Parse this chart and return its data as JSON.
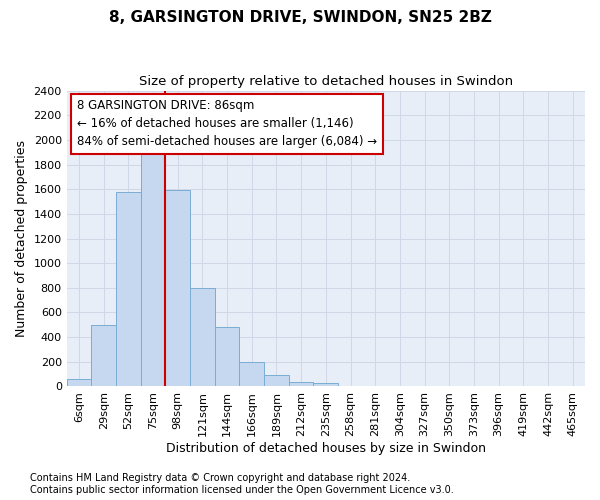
{
  "title": "8, GARSINGTON DRIVE, SWINDON, SN25 2BZ",
  "subtitle": "Size of property relative to detached houses in Swindon",
  "xlabel": "Distribution of detached houses by size in Swindon",
  "ylabel": "Number of detached properties",
  "categories": [
    "6sqm",
    "29sqm",
    "52sqm",
    "75sqm",
    "98sqm",
    "121sqm",
    "144sqm",
    "166sqm",
    "189sqm",
    "212sqm",
    "235sqm",
    "258sqm",
    "281sqm",
    "304sqm",
    "327sqm",
    "350sqm",
    "373sqm",
    "396sqm",
    "419sqm",
    "442sqm",
    "465sqm"
  ],
  "values": [
    60,
    500,
    1580,
    1950,
    1590,
    800,
    480,
    195,
    90,
    35,
    28,
    0,
    0,
    0,
    0,
    0,
    0,
    0,
    0,
    0,
    0
  ],
  "bar_color": "#c5d8f0",
  "bar_edge_color": "#7aadd4",
  "annotation_text": "8 GARSINGTON DRIVE: 86sqm\n← 16% of detached houses are smaller (1,146)\n84% of semi-detached houses are larger (6,084) →",
  "annotation_box_color": "#ffffff",
  "annotation_box_edge": "#cc0000",
  "vline_color": "#cc0000",
  "footnote1": "Contains HM Land Registry data © Crown copyright and database right 2024.",
  "footnote2": "Contains public sector information licensed under the Open Government Licence v3.0.",
  "ylim": [
    0,
    2400
  ],
  "yticks": [
    0,
    200,
    400,
    600,
    800,
    1000,
    1200,
    1400,
    1600,
    1800,
    2000,
    2200,
    2400
  ],
  "grid_color": "#d0d8e8",
  "bg_color": "#e8eef8",
  "title_fontsize": 11,
  "subtitle_fontsize": 9.5,
  "axis_label_fontsize": 9,
  "tick_fontsize": 8,
  "annotation_fontsize": 8.5,
  "footnote_fontsize": 7
}
